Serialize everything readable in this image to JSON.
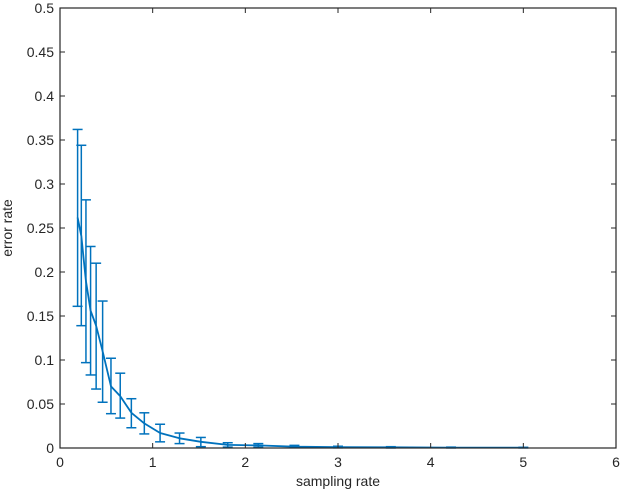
{
  "chart_data": {
    "type": "line",
    "title": "",
    "xlabel": "sampling rate",
    "ylabel": "error rate",
    "xlim": [
      0,
      6
    ],
    "ylim": [
      0,
      0.5
    ],
    "xticks": [
      0,
      1,
      2,
      3,
      4,
      5,
      6
    ],
    "xtick_labels": [
      "0",
      "1",
      "2",
      "3",
      "4",
      "5",
      "6"
    ],
    "yticks": [
      0,
      0.05,
      0.1,
      0.15,
      0.2,
      0.25,
      0.3,
      0.35,
      0.4,
      0.45,
      0.5
    ],
    "ytick_labels": [
      "0",
      "0.05",
      "0.1",
      "0.15",
      "0.2",
      "0.25",
      "0.3",
      "0.35",
      "0.4",
      "0.45",
      "0.5"
    ],
    "grid": false,
    "legend": null,
    "series": [
      {
        "name": "error rate",
        "color": "#0072BD",
        "style": "line with error bars",
        "x": [
          0.19,
          0.23,
          0.28,
          0.33,
          0.39,
          0.46,
          0.55,
          0.65,
          0.77,
          0.91,
          1.08,
          1.29,
          1.52,
          1.81,
          2.14,
          2.53,
          3.0,
          3.57,
          4.22,
          5.0
        ],
        "y": [
          0.262,
          0.241,
          0.19,
          0.156,
          0.139,
          0.11,
          0.07,
          0.059,
          0.04,
          0.028,
          0.017,
          0.011,
          0.007,
          0.0035,
          0.003,
          0.0015,
          0.001,
          0.0008,
          0.0005,
          0.0004
        ],
        "upper": [
          0.362,
          0.344,
          0.282,
          0.229,
          0.21,
          0.167,
          0.102,
          0.085,
          0.056,
          0.04,
          0.027,
          0.017,
          0.012,
          0.006,
          0.005,
          0.003,
          0.002,
          0.0015,
          0.001,
          0.0008
        ],
        "lower": [
          0.161,
          0.139,
          0.097,
          0.083,
          0.067,
          0.052,
          0.039,
          0.034,
          0.023,
          0.016,
          0.007,
          0.005,
          0.0015,
          0.001,
          0.001,
          0.0003,
          0.0002,
          0.0001,
          0.0001,
          0.0001
        ]
      }
    ]
  },
  "colors": {
    "axis": "#262626",
    "series": "#0072BD",
    "background": "#ffffff"
  }
}
